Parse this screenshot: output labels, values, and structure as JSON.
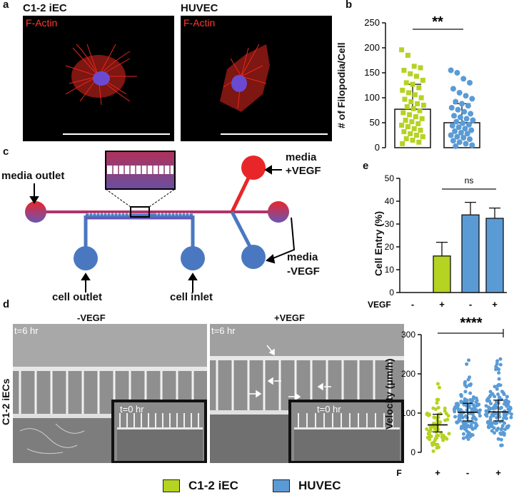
{
  "panel_a": {
    "letter": "a",
    "images": [
      {
        "title": "C1-2 iEC",
        "label": "F-Actin"
      },
      {
        "title": "HUVEC",
        "label": "F-Actin"
      }
    ]
  },
  "panel_c": {
    "letter": "c",
    "labels": {
      "media_outlet": "media outlet",
      "media_vegf_top": "media",
      "media_vegf_top2": "+VEGF",
      "media_vegf_bottom": "media",
      "media_vegf_bottom2": "-VEGF",
      "cell_outlet": "cell outlet",
      "cell_inlet": "cell inlet"
    }
  },
  "panel_d": {
    "letter": "d",
    "row_label": "C1-2 iECs",
    "images": [
      {
        "title": "-VEGF",
        "time": "t=6 hr",
        "inset_time": "t=0 hr"
      },
      {
        "title": "+VEGF",
        "time": "t=6 hr",
        "inset_time": "t=0 hr"
      }
    ]
  },
  "colors": {
    "c12iec": "#b5d321",
    "huvec": "#5b9bd5",
    "red": "#e8262a"
  },
  "legend": [
    {
      "name": "C1-2 iEC",
      "color": "#b5d321"
    },
    {
      "name": "HUVEC",
      "color": "#5b9bd5"
    }
  ],
  "chart_data": [
    {
      "panel": "b",
      "type": "bar",
      "categories": [
        "C1-2 iEC",
        "HUVEC"
      ],
      "values": [
        77,
        50
      ],
      "error": [
        50,
        38
      ],
      "ylabel": "# of Filopodia/Cell",
      "ylim": [
        0,
        250
      ],
      "yticks": [
        "0",
        "50",
        "100",
        "150",
        "200",
        "250"
      ],
      "significance": "**",
      "points": [
        [
          196,
          185,
          163,
          160,
          155,
          148,
          143,
          135,
          130,
          127,
          120,
          115,
          110,
          106,
          100,
          97,
          92,
          88,
          85,
          82,
          78,
          74,
          70,
          66,
          62,
          58,
          55,
          52,
          48,
          45,
          42,
          38,
          35,
          32,
          28,
          25,
          22,
          18,
          15,
          11,
          8
        ],
        [
          155,
          150,
          138,
          130,
          118,
          110,
          104,
          98,
          92,
          88,
          84,
          80,
          76,
          72,
          68,
          64,
          61,
          58,
          55,
          52,
          49,
          46,
          44,
          41,
          38,
          35,
          33,
          30,
          28,
          25,
          22,
          20,
          17,
          14,
          11,
          8,
          5,
          3
        ]
      ]
    },
    {
      "panel": "e",
      "type": "bar",
      "categories": [
        "C1-2 iEC -",
        "C1-2 iEC +",
        "HUVEC -",
        "HUVEC +"
      ],
      "vegf": [
        "-",
        "+",
        "-",
        "+"
      ],
      "values": [
        0,
        16,
        34,
        32.5
      ],
      "error": [
        0,
        6,
        5.5,
        4.5
      ],
      "ylabel": "Cell Entry (%)",
      "xlabel": "VEGF",
      "ylim": [
        0,
        50
      ],
      "yticks": [
        "0",
        "10",
        "20",
        "30",
        "40",
        "50"
      ],
      "significance": "ns"
    },
    {
      "panel": "velocity",
      "type": "scatter",
      "categories": [
        "C1-2 iEC +",
        "HUVEC -",
        "HUVEC +"
      ],
      "vegf": [
        "+",
        "-",
        "+"
      ],
      "medians": [
        70,
        102,
        103
      ],
      "quartiles": [
        [
          52,
          97
        ],
        [
          80,
          125
        ],
        [
          80,
          133
        ]
      ],
      "ylabel": "Velocity (μm/h)",
      "xlabel": "VEGF",
      "ylim": [
        0,
        300
      ],
      "yticks": [
        "0",
        "100",
        "200",
        "300"
      ],
      "significance": "****"
    }
  ]
}
